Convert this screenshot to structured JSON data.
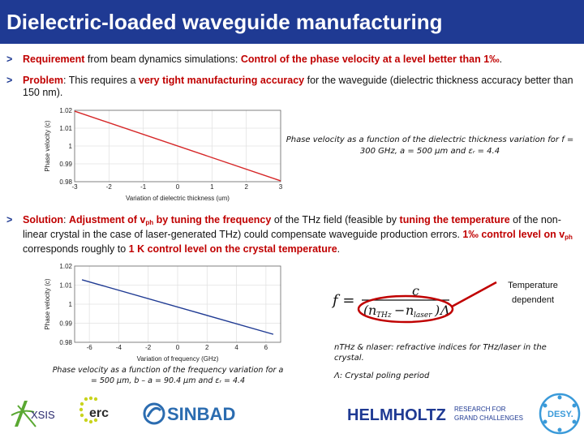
{
  "title": "Dielectric-loaded waveguide manufacturing",
  "bullet1": {
    "marker": ">",
    "requirement": "Requirement",
    "text1": " from beam dynamics simulations: ",
    "highlight": "Control of the phase velocity at a level better than 1‰",
    "text2": "."
  },
  "bullet2": {
    "marker": ">",
    "problem": "Problem",
    "text1": ": This requires a ",
    "highlight": "very tight manufacturing accuracy",
    "text2": " for the waveguide (dielectric thickness accuracy better than 150 nm)."
  },
  "bullet3": {
    "marker": ">",
    "solution": "Solution",
    "t1": ": ",
    "h1a": "Adjustment of v",
    "h1sub": "ph",
    "h1b": " by tuning the frequency",
    "t2": " of the THz field (feasible by ",
    "h2": "tuning the temperature",
    "t3": " of the non-linear crystal in the case of laser-generated THz) could compensate waveguide production errors. ",
    "h3a": "1‰ control level on v",
    "h3sub": "ph",
    "t4": " corresponds roughly to ",
    "h4": "1 K control level on the crystal temperature",
    "t5": "."
  },
  "caption1": "Phase velocity as a function of the dielectric thickness variation for f = 300 GHz, a = 500 μm and εᵣ = 4.4",
  "caption2": "Phase velocity as a function of the frequency variation for a = 500 μm, b – a = 90.4 μm and εᵣ = 4.4",
  "formula": {
    "lhs": "f =",
    "numerator": "c",
    "n_thz": "n",
    "n_thz_sub": "THz",
    "minus": "−",
    "n_laser": "n",
    "n_laser_sub": "laser",
    "lambda": "Λ"
  },
  "temp_label": "Temperature dependent",
  "note1": "nₜₕₓ & nₗₐₛₑᵣ: refractive indices for THz/laser in the crystal.",
  "note1_text": "nTHz & nlaser: refractive indices for THz/laser in the crystal.",
  "note2": "Λ: Crystal poling period",
  "logos": {
    "axsis": "XSIS",
    "erc": "erc",
    "sinbad": "SINBAD",
    "helmholtz": "HELMHOLTZ",
    "helmholtz_tag1": "RESEARCH FOR",
    "helmholtz_tag2": "GRAND CHALLENGES",
    "desy": "DESY."
  },
  "colors": {
    "title_bg": "#1f3a93",
    "accent_red": "#c00000",
    "line_red": "#d62728",
    "line_blue": "#1f3a93"
  },
  "chart_data": [
    {
      "type": "line",
      "title": "",
      "xlabel": "Variation of dielectric thickness (um)",
      "ylabel": "Phase velocity (c)",
      "xlim": [
        -3,
        3
      ],
      "ylim": [
        0.98,
        1.02
      ],
      "xticks": [
        -3,
        -2,
        -1,
        0,
        1,
        2,
        3
      ],
      "yticks": [
        0.98,
        0.99,
        1,
        1.01,
        1.02
      ],
      "ytick_labels": [
        "0.98",
        "0.99",
        "1",
        "1.01",
        "1.02"
      ],
      "grid": true,
      "series": [
        {
          "color": "#d62728",
          "x": [
            -3,
            3
          ],
          "y": [
            1.0195,
            0.9805
          ]
        }
      ]
    },
    {
      "type": "line",
      "title": "",
      "xlabel": "Variation of frequency (GHz)",
      "ylabel": "Phase velocity (c)",
      "xlim": [
        -7,
        7
      ],
      "ylim": [
        0.98,
        1.02
      ],
      "xticks": [
        -6,
        -4,
        -2,
        0,
        2,
        4,
        6
      ],
      "yticks": [
        0.98,
        0.99,
        1,
        1.01,
        1.02
      ],
      "ytick_labels": [
        "0.98",
        "0.99",
        "1",
        "1.01",
        "1.02"
      ],
      "grid": true,
      "series": [
        {
          "color": "#1f3a93",
          "x": [
            -6.5,
            6.5
          ],
          "y": [
            1.0128,
            0.9842
          ]
        }
      ]
    }
  ]
}
